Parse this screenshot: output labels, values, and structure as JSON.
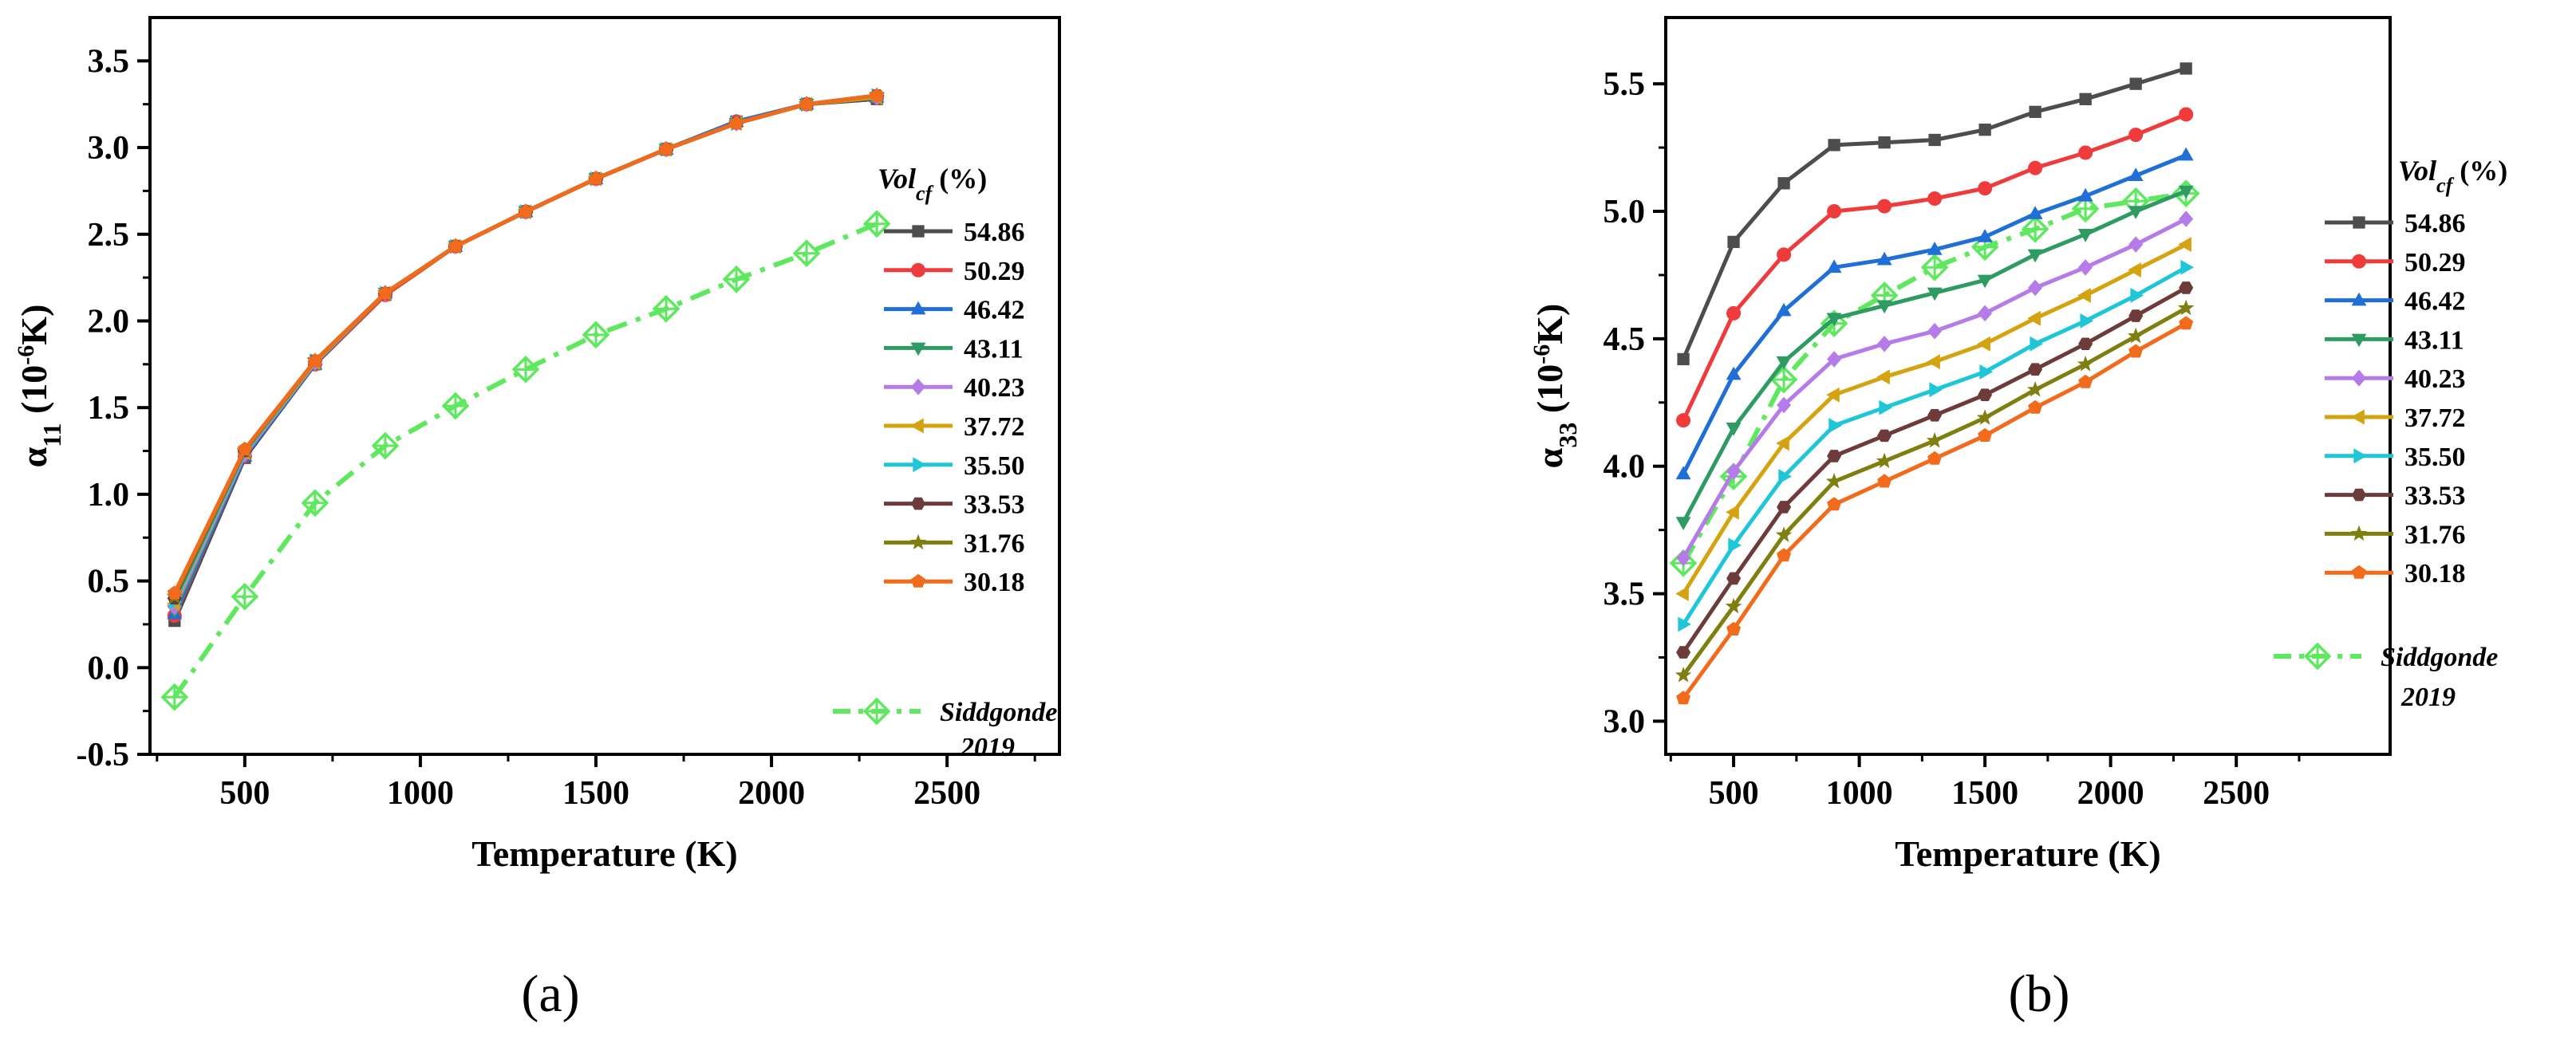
{
  "chart_data": [
    {
      "type": "line",
      "panel_label": "(a)",
      "xlabel": "Temperature (K)",
      "ylabel_main": "α",
      "ylabel_sub": "11",
      "ylabel_unit_pre": " (10",
      "ylabel_unit_sup": "-6",
      "ylabel_unit_post": "K)",
      "xlim": [
        230,
        2820
      ],
      "ylim": [
        -0.5,
        3.75
      ],
      "xticks": [
        500,
        1000,
        1500,
        2000,
        2500
      ],
      "xtick_labels": [
        "500",
        "1000",
        "1500",
        "2000",
        "2500"
      ],
      "yticks": [
        -0.5,
        0.0,
        0.5,
        1.0,
        1.5,
        2.0,
        2.5,
        3.0,
        3.5
      ],
      "ytick_labels": [
        "-0.5",
        "0.0",
        "0.5",
        "1.0",
        "1.5",
        "2.0",
        "2.5",
        "3.0",
        "3.5"
      ],
      "legend_title_main": "Vol",
      "legend_title_sub": "cf",
      "legend_title_unit": " (%)",
      "x": [
        300,
        500,
        700,
        900,
        1100,
        1300,
        1500,
        1700,
        1900,
        2100,
        2300
      ],
      "series": [
        {
          "name": "54.86",
          "color": "#4d4d4d",
          "marker": "square",
          "values": [
            0.27,
            1.21,
            1.75,
            2.15,
            2.43,
            2.63,
            2.82,
            2.99,
            3.15,
            3.25,
            3.28
          ]
        },
        {
          "name": "50.29",
          "color": "#ef3b3b",
          "marker": "circle",
          "values": [
            0.3,
            1.22,
            1.75,
            2.15,
            2.43,
            2.63,
            2.82,
            2.99,
            3.15,
            3.25,
            3.29
          ]
        },
        {
          "name": "46.42",
          "color": "#1f6fd6",
          "marker": "triangle-up",
          "values": [
            0.31,
            1.22,
            1.75,
            2.16,
            2.43,
            2.63,
            2.82,
            2.99,
            3.15,
            3.25,
            3.29
          ]
        },
        {
          "name": "43.11",
          "color": "#2e9b62",
          "marker": "triangle-down",
          "values": [
            0.33,
            1.23,
            1.76,
            2.16,
            2.43,
            2.63,
            2.82,
            2.99,
            3.14,
            3.25,
            3.29
          ]
        },
        {
          "name": "40.23",
          "color": "#b57be8",
          "marker": "diamond",
          "values": [
            0.35,
            1.23,
            1.76,
            2.16,
            2.43,
            2.63,
            2.82,
            2.99,
            3.14,
            3.25,
            3.29
          ]
        },
        {
          "name": "37.72",
          "color": "#d4a30f",
          "marker": "triangle-left",
          "values": [
            0.37,
            1.24,
            1.76,
            2.16,
            2.43,
            2.63,
            2.82,
            2.99,
            3.14,
            3.25,
            3.29
          ]
        },
        {
          "name": "35.50",
          "color": "#1fc6d8",
          "marker": "triangle-right",
          "values": [
            0.38,
            1.24,
            1.77,
            2.16,
            2.43,
            2.63,
            2.82,
            2.99,
            3.14,
            3.25,
            3.3
          ]
        },
        {
          "name": "33.53",
          "color": "#6e3b3b",
          "marker": "hexagon",
          "values": [
            0.4,
            1.25,
            1.77,
            2.16,
            2.43,
            2.63,
            2.82,
            2.99,
            3.14,
            3.25,
            3.3
          ]
        },
        {
          "name": "31.76",
          "color": "#7f7f10",
          "marker": "star",
          "values": [
            0.41,
            1.25,
            1.77,
            2.16,
            2.43,
            2.63,
            2.82,
            2.99,
            3.14,
            3.25,
            3.3
          ]
        },
        {
          "name": "30.18",
          "color": "#f26a1b",
          "marker": "pentagon",
          "values": [
            0.43,
            1.26,
            1.77,
            2.16,
            2.43,
            2.63,
            2.82,
            2.99,
            3.14,
            3.25,
            3.3
          ]
        }
      ],
      "reference": {
        "name_line1": "Siddgonde",
        "name_line2": "2019",
        "color": "#5ee85e",
        "marker": "crossed-diamond",
        "values": [
          -0.17,
          0.41,
          0.95,
          1.28,
          1.51,
          1.72,
          1.92,
          2.07,
          2.24,
          2.39,
          2.56
        ]
      }
    },
    {
      "type": "line",
      "panel_label": "(b)",
      "xlabel": "Temperature (K)",
      "ylabel_main": "α",
      "ylabel_sub": "33",
      "ylabel_unit_pre": " (10",
      "ylabel_unit_sup": "-6",
      "ylabel_unit_post": "K)",
      "xlim": [
        230,
        2820
      ],
      "ylim": [
        2.87,
        5.76
      ],
      "xticks": [
        500,
        1000,
        1500,
        2000,
        2500
      ],
      "xtick_labels": [
        "500",
        "1000",
        "1500",
        "2000",
        "2500"
      ],
      "yticks": [
        3.0,
        3.5,
        4.0,
        4.5,
        5.0,
        5.5
      ],
      "ytick_labels": [
        "3.0",
        "3.5",
        "4.0",
        "4.5",
        "5.0",
        "5.5"
      ],
      "legend_title_main": "Vol",
      "legend_title_sub": "cf",
      "legend_title_unit": " (%)",
      "x": [
        300,
        500,
        700,
        900,
        1100,
        1300,
        1500,
        1700,
        1900,
        2100,
        2300
      ],
      "series": [
        {
          "name": "54.86",
          "color": "#4d4d4d",
          "marker": "square",
          "values": [
            4.42,
            4.88,
            5.11,
            5.26,
            5.27,
            5.28,
            5.32,
            5.39,
            5.44,
            5.5,
            5.56
          ]
        },
        {
          "name": "50.29",
          "color": "#ef3b3b",
          "marker": "circle",
          "values": [
            4.18,
            4.6,
            4.83,
            5.0,
            5.02,
            5.05,
            5.09,
            5.17,
            5.23,
            5.3,
            5.38
          ]
        },
        {
          "name": "46.42",
          "color": "#1f6fd6",
          "marker": "triangle-up",
          "values": [
            3.97,
            4.36,
            4.61,
            4.78,
            4.81,
            4.85,
            4.9,
            4.99,
            5.06,
            5.14,
            5.22
          ]
        },
        {
          "name": "43.11",
          "color": "#2e9b62",
          "marker": "triangle-down",
          "values": [
            3.78,
            4.15,
            4.41,
            4.58,
            4.63,
            4.68,
            4.73,
            4.83,
            4.91,
            5.0,
            5.08
          ]
        },
        {
          "name": "40.23",
          "color": "#b57be8",
          "marker": "diamond",
          "values": [
            3.64,
            3.98,
            4.24,
            4.42,
            4.48,
            4.53,
            4.6,
            4.7,
            4.78,
            4.87,
            4.97
          ]
        },
        {
          "name": "37.72",
          "color": "#d4a30f",
          "marker": "triangle-left",
          "values": [
            3.5,
            3.82,
            4.09,
            4.28,
            4.35,
            4.41,
            4.48,
            4.58,
            4.67,
            4.77,
            4.87
          ]
        },
        {
          "name": "35.50",
          "color": "#1fc6d8",
          "marker": "triangle-right",
          "values": [
            3.38,
            3.69,
            3.96,
            4.16,
            4.23,
            4.3,
            4.37,
            4.48,
            4.57,
            4.67,
            4.78
          ]
        },
        {
          "name": "33.53",
          "color": "#6e3b3b",
          "marker": "hexagon",
          "values": [
            3.27,
            3.56,
            3.84,
            4.04,
            4.12,
            4.2,
            4.28,
            4.38,
            4.48,
            4.59,
            4.7
          ]
        },
        {
          "name": "31.76",
          "color": "#7f7f10",
          "marker": "star",
          "values": [
            3.18,
            3.45,
            3.73,
            3.94,
            4.02,
            4.1,
            4.19,
            4.3,
            4.4,
            4.51,
            4.62
          ]
        },
        {
          "name": "30.18",
          "color": "#f26a1b",
          "marker": "pentagon",
          "values": [
            3.09,
            3.36,
            3.65,
            3.85,
            3.94,
            4.03,
            4.12,
            4.23,
            4.33,
            4.45,
            4.56
          ]
        }
      ],
      "reference": {
        "name_line1": "Siddgonde",
        "name_line2": "2019",
        "color": "#5ee85e",
        "marker": "crossed-diamond",
        "values": [
          3.62,
          3.96,
          4.34,
          4.56,
          4.67,
          4.78,
          4.86,
          4.93,
          5.01,
          5.04,
          5.07
        ]
      }
    }
  ]
}
